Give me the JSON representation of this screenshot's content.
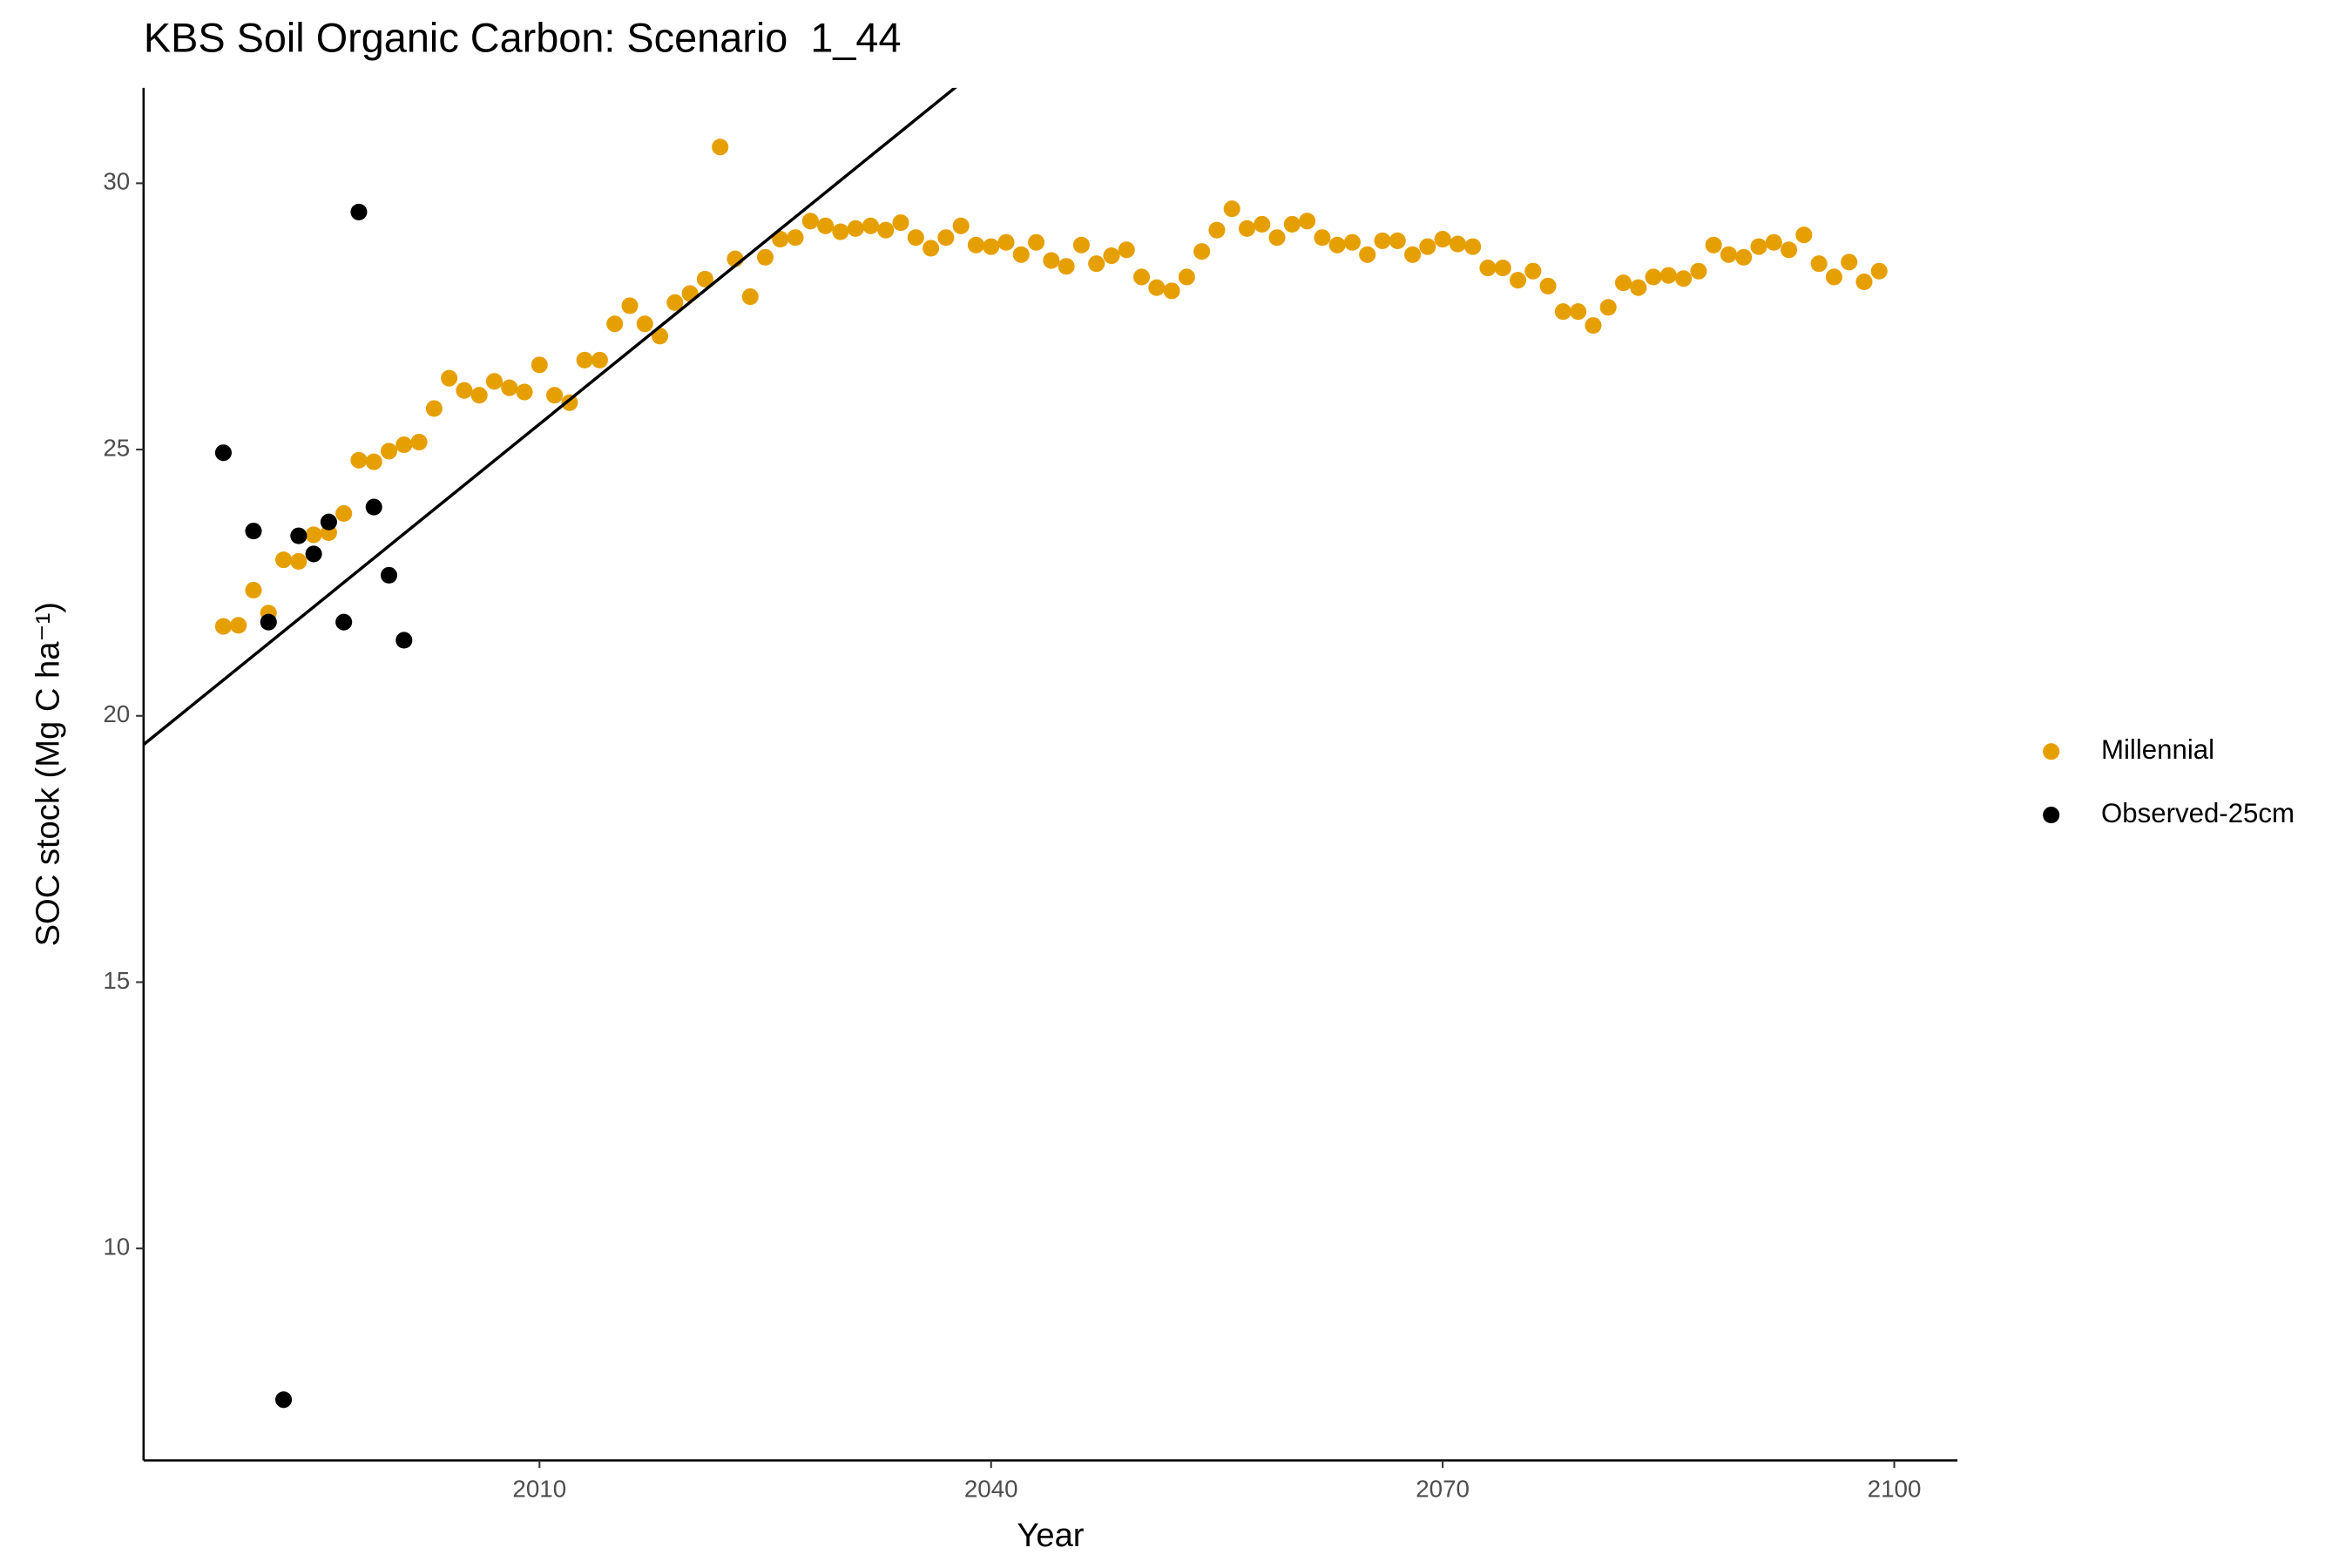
{
  "chart_data": {
    "type": "scatter",
    "title": "KBS Soil Organic Carbon: Scenario  1_44",
    "x_label": "Year",
    "y_label": "SOC stock (Mg C ha⁻¹)",
    "xlim": [
      1983.7,
      2104.2
    ],
    "ylim": [
      6.02,
      31.79
    ],
    "xticks": [
      2010,
      2040,
      2070,
      2100
    ],
    "yticks": [
      10,
      15,
      20,
      25,
      30
    ],
    "grid": false,
    "legend_position": "right",
    "abline": {
      "slope": 0.2288,
      "intercept": -434.41,
      "color": "#000000"
    },
    "series": [
      {
        "name": "Millennial",
        "color": "#E69F00",
        "x": [
          1989,
          1990,
          1991,
          1992,
          1993,
          1994,
          1995,
          1996,
          1997,
          1998,
          1999,
          2000,
          2001,
          2002,
          2003,
          2004,
          2005,
          2006,
          2007,
          2008,
          2009,
          2010,
          2011,
          2012,
          2013,
          2014,
          2015,
          2016,
          2017,
          2018,
          2019,
          2020,
          2021,
          2022,
          2023,
          2024,
          2025,
          2026,
          2027,
          2028,
          2029,
          2030,
          2031,
          2032,
          2033,
          2034,
          2035,
          2036,
          2037,
          2038,
          2039,
          2040,
          2041,
          2042,
          2043,
          2044,
          2045,
          2046,
          2047,
          2048,
          2049,
          2050,
          2051,
          2052,
          2053,
          2054,
          2055,
          2056,
          2057,
          2058,
          2059,
          2060,
          2061,
          2062,
          2063,
          2064,
          2065,
          2066,
          2067,
          2068,
          2069,
          2070,
          2071,
          2072,
          2073,
          2074,
          2075,
          2076,
          2077,
          2078,
          2079,
          2080,
          2081,
          2082,
          2083,
          2084,
          2085,
          2086,
          2087,
          2088,
          2089,
          2090,
          2091,
          2092,
          2093,
          2094,
          2095,
          2096,
          2097,
          2098,
          2099
        ],
        "values": [
          21.68,
          21.7,
          22.36,
          21.93,
          22.93,
          22.9,
          23.4,
          23.44,
          23.8,
          24.8,
          24.77,
          24.97,
          25.09,
          25.14,
          25.77,
          26.34,
          26.11,
          26.02,
          26.28,
          26.16,
          26.08,
          26.59,
          26.02,
          25.88,
          26.68,
          26.68,
          27.36,
          27.7,
          27.36,
          27.13,
          27.76,
          27.93,
          28.2,
          30.68,
          28.58,
          27.87,
          28.61,
          28.95,
          28.98,
          29.29,
          29.2,
          29.09,
          29.15,
          29.2,
          29.12,
          29.26,
          28.98,
          28.78,
          28.98,
          29.2,
          28.84,
          28.81,
          28.89,
          28.66,
          28.89,
          28.55,
          28.44,
          28.84,
          28.49,
          28.64,
          28.75,
          28.24,
          28.04,
          27.98,
          28.24,
          28.72,
          29.12,
          29.52,
          29.15,
          29.23,
          28.98,
          29.23,
          29.29,
          28.98,
          28.84,
          28.89,
          28.66,
          28.92,
          28.92,
          28.66,
          28.81,
          28.95,
          28.86,
          28.81,
          28.41,
          28.41,
          28.18,
          28.35,
          28.07,
          27.59,
          27.59,
          27.33,
          27.67,
          28.13,
          28.04,
          28.24,
          28.27,
          28.21,
          28.35,
          28.84,
          28.66,
          28.61,
          28.81,
          28.89,
          28.75,
          29.03,
          28.49,
          28.24,
          28.52,
          28.15,
          28.35
        ]
      },
      {
        "name": "Observed-25cm",
        "color": "#000000",
        "x": [
          1989,
          1991,
          1992,
          1993,
          1994,
          1995,
          1996,
          1997,
          1998,
          1999,
          2000,
          2001
        ],
        "values": [
          24.94,
          23.47,
          21.76,
          7.16,
          23.38,
          23.04,
          23.64,
          21.76,
          29.46,
          23.92,
          22.64,
          21.42
        ]
      }
    ]
  }
}
